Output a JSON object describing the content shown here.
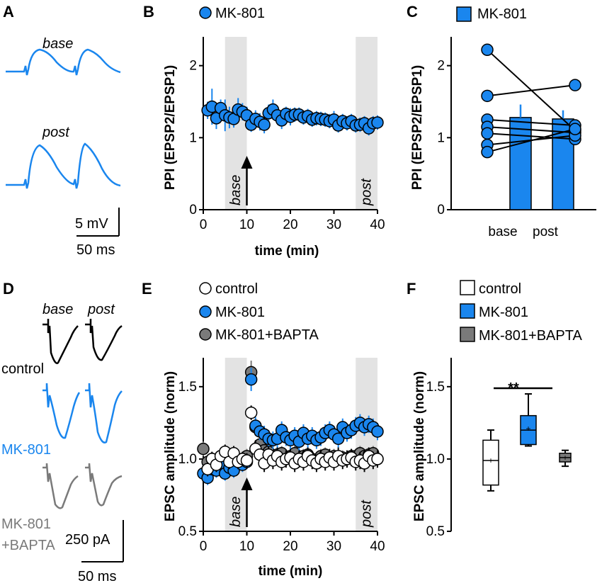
{
  "colors": {
    "blue": "#1a86ee",
    "gray": "#7a7a7a",
    "black": "#000000",
    "white": "#ffffff",
    "shade": "#e3e3e3"
  },
  "panels": {
    "A": {
      "label": "A",
      "base": "base",
      "post": "post",
      "scale_v": "5 mV",
      "scale_t": "50 ms"
    },
    "D": {
      "label": "D",
      "base": "base",
      "post": "post",
      "control": "control",
      "mk801": "MK-801",
      "bapta_1": "MK-801",
      "bapta_2": "+BAPTA",
      "scale_i": "250 pA",
      "scale_t": "50 ms"
    }
  },
  "chart_data": [
    {
      "id": "B",
      "label": "B",
      "type": "scatter",
      "xlabel": "time (min)",
      "ylabel": "PPI (EPSP2/EPSP1)",
      "xlim": [
        0,
        40
      ],
      "ylim": [
        0,
        2.4
      ],
      "xticks": [
        "0",
        "10",
        "20",
        "30",
        "40"
      ],
      "yticks": [
        "0",
        "1",
        "2"
      ],
      "shaded": [
        {
          "from": 5,
          "to": 10,
          "label": "base"
        },
        {
          "from": 35,
          "to": 40,
          "label": "post"
        }
      ],
      "arrow_x": 10,
      "legend": [
        "MK-801"
      ],
      "series": [
        {
          "name": "MK-801",
          "color": "#1a86ee",
          "x": [
            1,
            2,
            3,
            4,
            5,
            6,
            7,
            8,
            9,
            10,
            11,
            12,
            13,
            14,
            15,
            16,
            17,
            18,
            19,
            20,
            21,
            22,
            23,
            24,
            25,
            26,
            27,
            28,
            29,
            30,
            31,
            32,
            33,
            34,
            35,
            36,
            37,
            38,
            39,
            40
          ],
          "y": [
            1.38,
            1.43,
            1.27,
            1.41,
            1.31,
            1.28,
            1.26,
            1.39,
            1.36,
            1.31,
            1.18,
            1.26,
            1.22,
            1.18,
            1.34,
            1.39,
            1.31,
            1.24,
            1.33,
            1.29,
            1.32,
            1.32,
            1.28,
            1.3,
            1.25,
            1.27,
            1.26,
            1.25,
            1.23,
            1.25,
            1.17,
            1.23,
            1.2,
            1.23,
            1.17,
            1.18,
            1.2,
            1.13,
            1.2,
            1.21
          ],
          "err": [
            0.12,
            0.25,
            0.15,
            0.12,
            0.22,
            0.15,
            0.12,
            0.16,
            0.12,
            0.12,
            0.1,
            0.12,
            0.12,
            0.12,
            0.12,
            0.14,
            0.12,
            0.12,
            0.1,
            0.12,
            0.1,
            0.1,
            0.1,
            0.1,
            0.1,
            0.1,
            0.1,
            0.1,
            0.1,
            0.12,
            0.1,
            0.1,
            0.1,
            0.1,
            0.1,
            0.1,
            0.1,
            0.1,
            0.1,
            0.1
          ]
        }
      ]
    },
    {
      "id": "C",
      "label": "C",
      "type": "bar",
      "xlabel": "",
      "ylabel": "PPI (EPSP2/EPSP1)",
      "ylim": [
        0,
        2.4
      ],
      "yticks": [
        "0",
        "1",
        "2"
      ],
      "categories": [
        "base",
        "post"
      ],
      "values": [
        1.28,
        1.26
      ],
      "errors": [
        0.18,
        0.12
      ],
      "legend": [
        "MK-801"
      ],
      "color": "#1a86ee",
      "paired": [
        [
          2.22,
          1.1
        ],
        [
          1.58,
          1.73
        ],
        [
          1.25,
          1.17
        ],
        [
          1.15,
          1.07
        ],
        [
          1.06,
          0.98
        ],
        [
          0.9,
          1.03
        ],
        [
          0.8,
          1.12
        ]
      ]
    },
    {
      "id": "E",
      "label": "E",
      "type": "scatter",
      "xlabel": "time (min)",
      "ylabel": "EPSC amplitude (norm)",
      "xlim": [
        0,
        40
      ],
      "ylim": [
        0.5,
        1.7
      ],
      "xticks": [
        "0",
        "10",
        "20",
        "30",
        "40"
      ],
      "yticks": [
        "0.5",
        "1.0",
        "1.5"
      ],
      "shaded": [
        {
          "from": 5,
          "to": 10,
          "label": "base"
        },
        {
          "from": 35,
          "to": 40,
          "label": "post"
        }
      ],
      "arrow_x": 10,
      "legend": [
        "control",
        "MK-801",
        "MK-801+BAPTA"
      ],
      "series": [
        {
          "name": "MK-801+BAPTA",
          "color": "#7a7a7a",
          "x": [
            0,
            1,
            2,
            3,
            4,
            5,
            6,
            7,
            8,
            9,
            10,
            11,
            12,
            13,
            14,
            15,
            16,
            17,
            18,
            19,
            20,
            21,
            22,
            23,
            24,
            25,
            26,
            27,
            28,
            29,
            30,
            31,
            32,
            33,
            34,
            35,
            36,
            37,
            38,
            39,
            40
          ],
          "y": [
            1.07,
            0.98,
            1.0,
            0.96,
            1.02,
            0.98,
            1.0,
            0.96,
            1.0,
            0.98,
            1.02,
            1.6,
            1.22,
            1.1,
            1.06,
            1.05,
            1.0,
            1.03,
            1.04,
            1.0,
            1.02,
            1.04,
            1.0,
            1.02,
            1.03,
            1.0,
            0.99,
            1.02,
            1.03,
            1.0,
            1.02,
            1.0,
            1.01,
            1.0,
            1.02,
            1.02,
            1.04,
            1.02,
            1.03,
            1.04,
            1.0
          ],
          "err": [
            0.05,
            0.05,
            0.05,
            0.05,
            0.05,
            0.05,
            0.05,
            0.05,
            0.05,
            0.05,
            0.05,
            0.08,
            0.06,
            0.05,
            0.05,
            0.05,
            0.05,
            0.05,
            0.05,
            0.05,
            0.05,
            0.05,
            0.05,
            0.05,
            0.05,
            0.05,
            0.05,
            0.05,
            0.05,
            0.05,
            0.05,
            0.05,
            0.05,
            0.05,
            0.05,
            0.05,
            0.05,
            0.05,
            0.05,
            0.05,
            0.05
          ]
        },
        {
          "name": "MK-801",
          "color": "#1a86ee",
          "x": [
            0,
            1,
            2,
            3,
            4,
            5,
            6,
            7,
            8,
            9,
            10,
            11,
            12,
            13,
            14,
            15,
            16,
            17,
            18,
            19,
            20,
            21,
            22,
            23,
            24,
            25,
            26,
            27,
            28,
            29,
            30,
            31,
            32,
            33,
            34,
            35,
            36,
            37,
            38,
            39,
            40
          ],
          "y": [
            0.9,
            0.87,
            0.93,
            0.92,
            0.97,
            0.9,
            0.94,
            0.92,
            1.0,
            0.96,
            0.98,
            1.55,
            1.23,
            1.19,
            1.17,
            1.14,
            1.13,
            1.14,
            1.2,
            1.15,
            1.13,
            1.16,
            1.12,
            1.18,
            1.14,
            1.16,
            1.13,
            1.15,
            1.18,
            1.2,
            1.17,
            1.14,
            1.22,
            1.18,
            1.2,
            1.23,
            1.25,
            1.22,
            1.24,
            1.22,
            1.19
          ],
          "err": [
            0.05,
            0.05,
            0.06,
            0.05,
            0.05,
            0.05,
            0.05,
            0.05,
            0.05,
            0.05,
            0.05,
            0.08,
            0.06,
            0.06,
            0.06,
            0.06,
            0.06,
            0.06,
            0.06,
            0.06,
            0.06,
            0.06,
            0.06,
            0.06,
            0.06,
            0.06,
            0.06,
            0.06,
            0.06,
            0.06,
            0.06,
            0.06,
            0.06,
            0.06,
            0.06,
            0.06,
            0.06,
            0.06,
            0.06,
            0.06,
            0.06
          ]
        },
        {
          "name": "control",
          "color": "#ffffff",
          "x": [
            1,
            2,
            3,
            4,
            5,
            6,
            7,
            8,
            9,
            10,
            11,
            12,
            13,
            14,
            15,
            16,
            17,
            18,
            19,
            20,
            21,
            22,
            23,
            24,
            25,
            26,
            27,
            28,
            29,
            30,
            31,
            32,
            33,
            34,
            35,
            36,
            37,
            38,
            39,
            40
          ],
          "y": [
            0.93,
            1.0,
            0.96,
            1.02,
            1.05,
            0.98,
            1.04,
            0.98,
            1.0,
            0.99,
            1.32,
            1.07,
            1.03,
            0.97,
            1.03,
            0.99,
            1.02,
            0.98,
            1.0,
            1.01,
            0.97,
            1.0,
            0.98,
            1.02,
            0.99,
            0.97,
            1.0,
            0.98,
            1.01,
            0.98,
            1.02,
            0.99,
            1.0,
            1.01,
            0.98,
            0.99,
            0.97,
            1.02,
            0.99,
            1.0
          ],
          "err": [
            0.05,
            0.05,
            0.05,
            0.05,
            0.05,
            0.05,
            0.05,
            0.05,
            0.05,
            0.05,
            0.05,
            0.06,
            0.06,
            0.06,
            0.06,
            0.06,
            0.06,
            0.06,
            0.06,
            0.06,
            0.06,
            0.06,
            0.06,
            0.06,
            0.06,
            0.06,
            0.06,
            0.06,
            0.06,
            0.06,
            0.06,
            0.06,
            0.06,
            0.06,
            0.06,
            0.06,
            0.06,
            0.06,
            0.06,
            0.06
          ]
        }
      ]
    },
    {
      "id": "F",
      "label": "F",
      "type": "box",
      "xlabel": "",
      "ylabel": "EPSC amplitude (norm)",
      "ylim": [
        0.5,
        1.7
      ],
      "yticks": [
        "0.5",
        "1.0",
        "1.5"
      ],
      "legend": [
        "control",
        "MK-801",
        "MK-801+BAPTA"
      ],
      "significance": "**",
      "boxes": [
        {
          "name": "control",
          "color": "#ffffff",
          "min": 0.78,
          "q1": 0.82,
          "median": 0.99,
          "q3": 1.13,
          "max": 1.2,
          "mean": 0.99
        },
        {
          "name": "MK-801",
          "color": "#1a86ee",
          "min": 1.09,
          "q1": 1.1,
          "median": 1.2,
          "q3": 1.3,
          "max": 1.45,
          "mean": 1.21
        },
        {
          "name": "MK-801+BAPTA",
          "color": "#7a7a7a",
          "min": 0.95,
          "q1": 0.98,
          "median": 1.01,
          "q3": 1.04,
          "max": 1.06,
          "mean": 1.01
        }
      ]
    }
  ]
}
